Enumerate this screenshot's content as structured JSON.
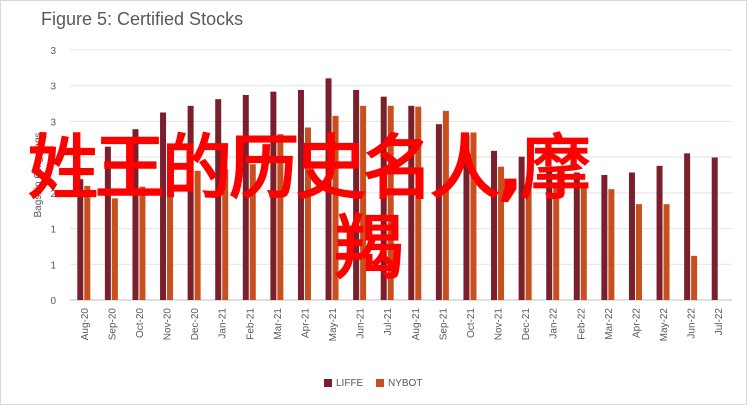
{
  "chart_data": {
    "type": "bar",
    "title": "Figure 5: Certified Stocks",
    "ylabel": "Bags, in 60kg bags",
    "ylim": [
      0,
      3
    ],
    "yticks": [
      "0",
      "1",
      "1",
      "2",
      "2",
      "3",
      "3",
      "3"
    ],
    "categories": [
      "Aug-20",
      "Sep-20",
      "Oct-20",
      "Nov-20",
      "Dec-20",
      "Jan-21",
      "Feb-21",
      "Mar-21",
      "Apr-21",
      "May-21",
      "Jun-21",
      "Jul-21",
      "Aug-21",
      "Sep-21",
      "Oct-21",
      "Nov-21",
      "Dec-21",
      "Jan-22",
      "Feb-22",
      "Mar-22",
      "Apr-22",
      "May-22",
      "Jun-22",
      "Jul-22"
    ],
    "series": [
      {
        "name": "LIFFE",
        "color": "#7a1f2b",
        "values": [
          1.45,
          1.84,
          2.05,
          2.25,
          2.33,
          2.41,
          2.46,
          2.5,
          2.52,
          2.66,
          2.52,
          2.44,
          2.33,
          2.11,
          1.98,
          1.79,
          1.72,
          1.57,
          1.53,
          1.5,
          1.53,
          1.61,
          1.76,
          1.71
        ]
      },
      {
        "name": "NYBOT",
        "color": "#c8501e",
        "values": [
          1.37,
          1.22,
          1.36,
          1.4,
          1.55,
          1.57,
          1.63,
          1.99,
          2.07,
          2.21,
          2.33,
          2.33,
          2.32,
          2.27,
          2.01,
          1.6,
          1.47,
          1.4,
          1.38,
          1.33,
          1.15,
          1.15,
          0.53,
          null
        ]
      }
    ],
    "legend_position": "bottom",
    "grid": true
  },
  "overlay_text": {
    "line1": "姓王的历史名人,摩",
    "line2": "羯"
  }
}
